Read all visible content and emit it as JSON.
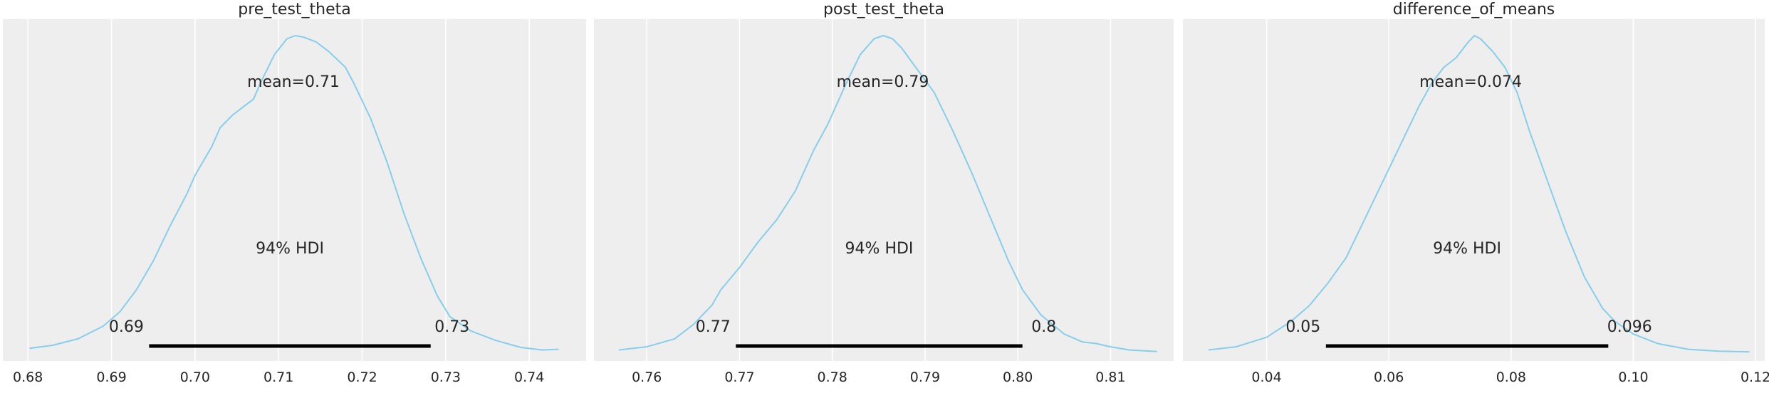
{
  "chart_data": [
    {
      "type": "area",
      "title": "pre_test_theta",
      "mean_label": "mean=0.71",
      "hdi_label": "94% HDI",
      "hdi": [
        0.6945,
        0.7282
      ],
      "hdi_low_label": "0.69",
      "hdi_high_label": "0.73",
      "xlim": [
        0.677,
        0.7468
      ],
      "ticks": [
        0.68,
        0.69,
        0.7,
        0.71,
        0.72,
        0.73,
        0.74
      ],
      "tick_labels": [
        "0.68",
        "0.69",
        "0.70",
        "0.71",
        "0.72",
        "0.73",
        "0.74"
      ],
      "density": {
        "x": [
          0.6802,
          0.683,
          0.686,
          0.689,
          0.691,
          0.693,
          0.695,
          0.697,
          0.699,
          0.7,
          0.702,
          0.703,
          0.7045,
          0.7055,
          0.707,
          0.708,
          0.7095,
          0.711,
          0.712,
          0.713,
          0.7145,
          0.716,
          0.718,
          0.719,
          0.721,
          0.723,
          0.725,
          0.727,
          0.729,
          0.7305,
          0.733,
          0.736,
          0.739,
          0.7415,
          0.7435
        ],
        "y": [
          0.015,
          0.025,
          0.045,
          0.085,
          0.13,
          0.2,
          0.29,
          0.4,
          0.5,
          0.56,
          0.65,
          0.71,
          0.75,
          0.77,
          0.8,
          0.86,
          0.94,
          0.99,
          1.0,
          0.995,
          0.98,
          0.95,
          0.9,
          0.85,
          0.74,
          0.6,
          0.44,
          0.3,
          0.18,
          0.115,
          0.07,
          0.04,
          0.018,
          0.01,
          0.012
        ]
      },
      "line_color": "#87ceeb"
    },
    {
      "type": "area",
      "title": "post_test_theta",
      "mean_label": "mean=0.79",
      "hdi_label": "94% HDI",
      "hdi": [
        0.7696,
        0.8005
      ],
      "hdi_low_label": "0.77",
      "hdi_high_label": "0.8",
      "xlim": [
        0.7543,
        0.8168
      ],
      "ticks": [
        0.76,
        0.77,
        0.78,
        0.79,
        0.8,
        0.81
      ],
      "tick_labels": [
        "0.76",
        "0.77",
        "0.78",
        "0.79",
        "0.80",
        "0.81"
      ],
      "density": {
        "x": [
          0.757,
          0.76,
          0.763,
          0.765,
          0.767,
          0.768,
          0.77,
          0.772,
          0.774,
          0.776,
          0.778,
          0.7795,
          0.7815,
          0.783,
          0.7845,
          0.7855,
          0.7865,
          0.7875,
          0.789,
          0.79,
          0.791,
          0.793,
          0.795,
          0.797,
          0.799,
          0.8005,
          0.8025,
          0.805,
          0.807,
          0.8085,
          0.81,
          0.812,
          0.815
        ],
        "y": [
          0.01,
          0.02,
          0.045,
          0.09,
          0.15,
          0.2,
          0.27,
          0.35,
          0.42,
          0.51,
          0.64,
          0.72,
          0.85,
          0.94,
          0.99,
          1.0,
          0.99,
          0.96,
          0.9,
          0.86,
          0.82,
          0.7,
          0.57,
          0.43,
          0.29,
          0.2,
          0.12,
          0.06,
          0.035,
          0.03,
          0.02,
          0.01,
          0.005
        ]
      },
      "line_color": "#87ceeb"
    },
    {
      "type": "area",
      "title": "difference_of_means",
      "mean_label": "mean=0.074",
      "hdi_label": "94% HDI",
      "hdi": [
        0.0497,
        0.0959
      ],
      "hdi_low_label": "0.05",
      "hdi_high_label": "0.096",
      "xlim": [
        0.0263,
        0.1215
      ],
      "ticks": [
        0.04,
        0.06,
        0.08,
        0.1,
        0.12
      ],
      "tick_labels": [
        "0.04",
        "0.06",
        "0.08",
        "0.10",
        "0.12"
      ],
      "density": {
        "x": [
          0.0305,
          0.035,
          0.04,
          0.044,
          0.047,
          0.05,
          0.053,
          0.056,
          0.059,
          0.062,
          0.065,
          0.067,
          0.069,
          0.071,
          0.073,
          0.074,
          0.075,
          0.077,
          0.079,
          0.081,
          0.083,
          0.086,
          0.089,
          0.092,
          0.095,
          0.097,
          0.1,
          0.104,
          0.109,
          0.114,
          0.119
        ],
        "y": [
          0.01,
          0.02,
          0.05,
          0.1,
          0.15,
          0.22,
          0.3,
          0.42,
          0.54,
          0.66,
          0.78,
          0.85,
          0.9,
          0.93,
          0.98,
          1.0,
          0.99,
          0.95,
          0.9,
          0.82,
          0.7,
          0.54,
          0.38,
          0.24,
          0.14,
          0.1,
          0.06,
          0.03,
          0.012,
          0.006,
          0.004
        ]
      },
      "line_color": "#87ceeb"
    }
  ]
}
